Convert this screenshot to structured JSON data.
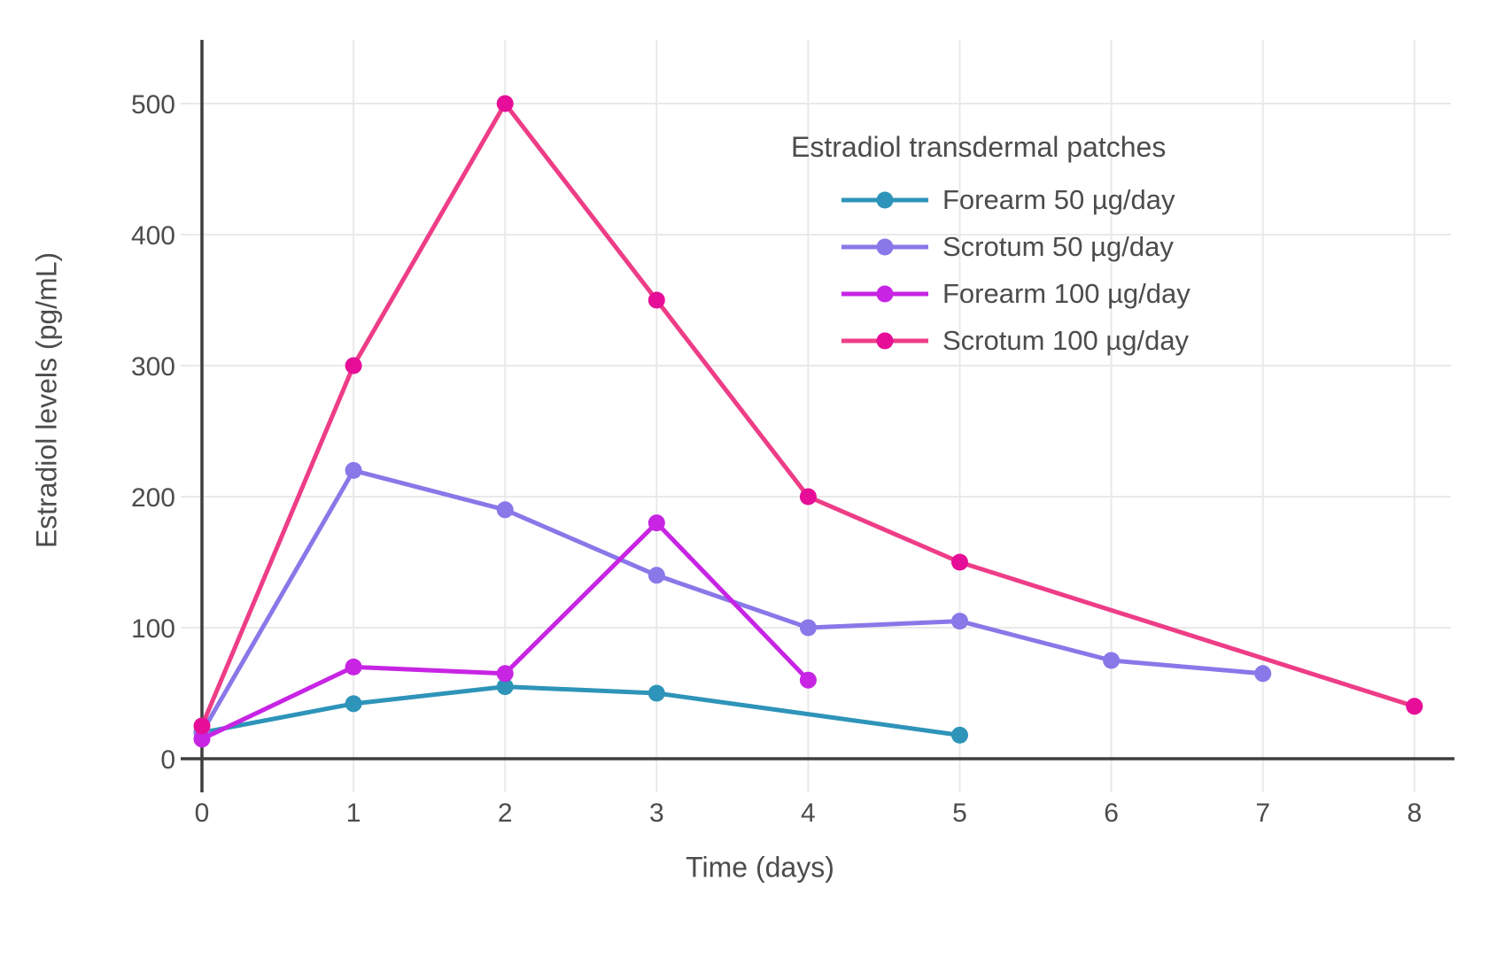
{
  "chart_data": {
    "type": "line",
    "legend_title": "Estradiol transdermal patches",
    "xlabel": "Time (days)",
    "ylabel": "Estradiol levels (pg/mL)",
    "x_ticks": [
      0,
      1,
      2,
      3,
      4,
      5,
      6,
      7,
      8
    ],
    "y_ticks": [
      0,
      100,
      200,
      300,
      400,
      500
    ],
    "xlim": [
      0,
      8.3
    ],
    "ylim": [
      0,
      549
    ],
    "grid": true,
    "legend_position": "inside upper right",
    "series": [
      {
        "name": "Forearm 50 µg/day",
        "color": "#2E94B9",
        "x": [
          0,
          1,
          2,
          3,
          5
        ],
        "y": [
          20,
          42,
          55,
          50,
          18
        ]
      },
      {
        "name": "Scrotum 50 µg/day",
        "color": "#8878E8",
        "x": [
          0,
          1,
          2,
          3,
          4,
          5,
          6,
          7
        ],
        "y": [
          20,
          220,
          190,
          140,
          100,
          105,
          75,
          65
        ]
      },
      {
        "name": "Forearm 100 µg/day",
        "color": "#C724E4",
        "x": [
          0,
          1,
          2,
          3,
          4
        ],
        "y": [
          15,
          70,
          65,
          180,
          60
        ]
      },
      {
        "name": "Scrotum 100 µg/day",
        "color": "#EE3D87",
        "marker_color": "#E60E98",
        "x": [
          0,
          1,
          2,
          3,
          4,
          5,
          8
        ],
        "y": [
          25,
          300,
          500,
          350,
          200,
          150,
          40
        ]
      }
    ]
  },
  "colors": {
    "grid": "#E9E9E9",
    "axis": "#3F3F3F",
    "text": "#4C4C4C",
    "background": "#FFFFFF"
  }
}
